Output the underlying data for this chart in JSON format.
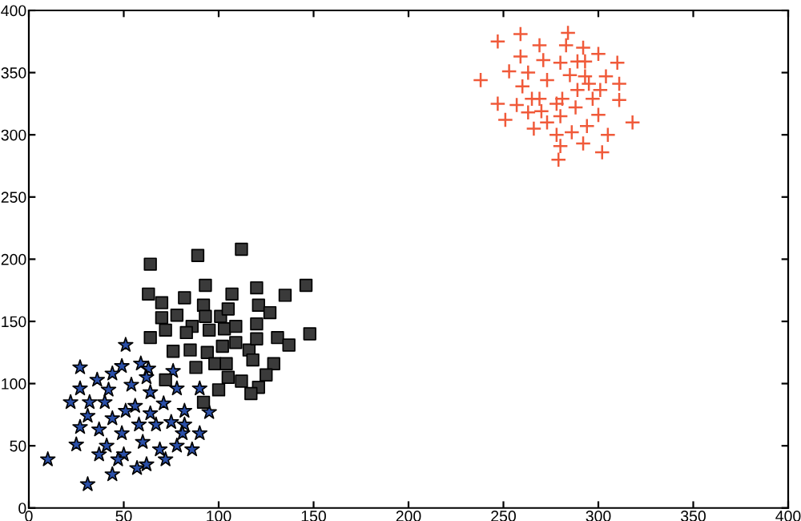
{
  "chart_data": {
    "type": "scatter",
    "xlim": [
      0,
      400
    ],
    "ylim": [
      0,
      400
    ],
    "xticks": [
      0,
      50,
      100,
      150,
      200,
      250,
      300,
      350,
      400
    ],
    "yticks": [
      0,
      50,
      100,
      150,
      200,
      250,
      300,
      350,
      400
    ],
    "grid": false,
    "series": [
      {
        "color": "#2a4fa8",
        "marker": "star",
        "x": [
          51,
          27,
          49,
          59,
          63,
          76,
          36,
          44,
          62,
          27,
          42,
          54,
          78,
          90,
          64,
          22,
          32,
          40,
          56,
          71,
          51,
          64,
          82,
          95,
          31,
          44,
          27,
          37,
          58,
          67,
          75,
          82,
          49,
          81,
          90,
          25,
          41,
          60,
          78,
          37,
          50,
          47,
          69,
          86,
          10,
          57,
          62,
          72,
          44,
          31
        ],
        "values": [
          131,
          113,
          114,
          116,
          112,
          110,
          103,
          108,
          105,
          96,
          95,
          99,
          96,
          96,
          93,
          85,
          85,
          85,
          82,
          84,
          78,
          76,
          78,
          77,
          74,
          72,
          65,
          63,
          67,
          67,
          69,
          67,
          60,
          60,
          60,
          51,
          50,
          53,
          50,
          43,
          43,
          39,
          47,
          47,
          39,
          32,
          35,
          39,
          27,
          19
        ]
      },
      {
        "color": "#3a3a3a",
        "marker": "square",
        "x": [
          64,
          89,
          112,
          63,
          70,
          82,
          92,
          107,
          120,
          93,
          135,
          146,
          70,
          78,
          93,
          101,
          105,
          121,
          127,
          86,
          83,
          72,
          95,
          103,
          109,
          120,
          64,
          76,
          85,
          94,
          102,
          109,
          116,
          120,
          131,
          137,
          148,
          88,
          98,
          104,
          118,
          129,
          72,
          105,
          112,
          125,
          100,
          121,
          117,
          92
        ],
        "values": [
          196,
          203,
          208,
          172,
          165,
          169,
          163,
          172,
          177,
          179,
          171,
          179,
          153,
          155,
          154,
          154,
          160,
          163,
          157,
          146,
          141,
          143,
          143,
          144,
          146,
          148,
          137,
          126,
          127,
          125,
          130,
          133,
          127,
          136,
          137,
          131,
          140,
          113,
          116,
          116,
          119,
          116,
          103,
          105,
          102,
          107,
          95,
          97,
          92,
          85
        ]
      },
      {
        "color": "#f05a3a",
        "marker": "cross",
        "x": [
          238,
          247,
          259,
          284,
          269,
          283,
          292,
          259,
          271,
          280,
          289,
          293,
          300,
          310,
          253,
          263,
          273,
          285,
          293,
          304,
          311,
          295,
          260,
          289,
          301,
          265,
          269,
          281,
          297,
          311,
          247,
          257,
          278,
          263,
          270,
          288,
          280,
          300,
          251,
          273,
          318,
          266,
          294,
          278,
          286,
          305,
          280,
          292,
          302,
          279
        ],
        "values": [
          344,
          375,
          381,
          382,
          372,
          372,
          370,
          363,
          360,
          358,
          359,
          359,
          365,
          358,
          351,
          350,
          344,
          348,
          347,
          347,
          341,
          341,
          339,
          336,
          336,
          329,
          329,
          329,
          329,
          328,
          325,
          324,
          325,
          318,
          319,
          322,
          315,
          316,
          312,
          310,
          310,
          305,
          307,
          300,
          302,
          300,
          291,
          293,
          286,
          280
        ]
      }
    ]
  }
}
